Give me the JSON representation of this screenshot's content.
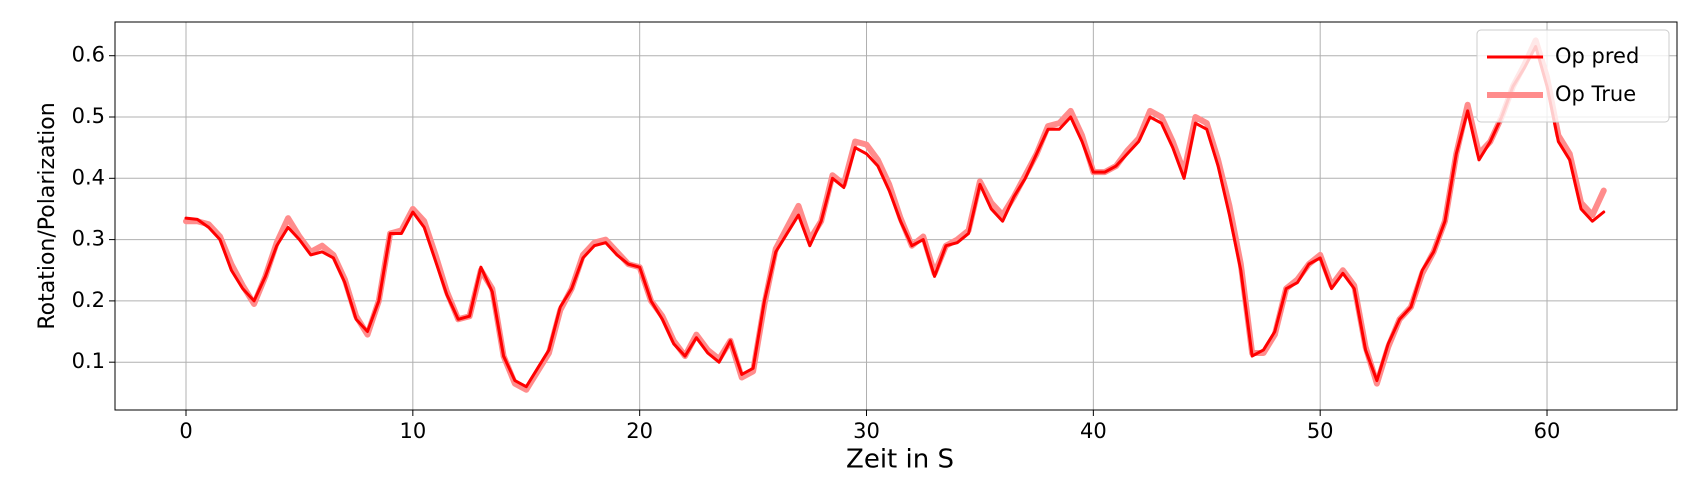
{
  "chart_data": {
    "type": "line",
    "xlabel": "Zeit in S",
    "ylabel": "Rotation/Polarization",
    "x": [
      0,
      0.5,
      1,
      1.5,
      2,
      2.5,
      3,
      3.5,
      4,
      4.5,
      5,
      5.5,
      6,
      6.5,
      7,
      7.5,
      8,
      8.5,
      9,
      9.5,
      10,
      10.5,
      11,
      11.5,
      12,
      12.5,
      13,
      13.5,
      14,
      14.5,
      15,
      15.5,
      16,
      16.5,
      17,
      17.5,
      18,
      18.5,
      19,
      19.5,
      20,
      20.5,
      21,
      21.5,
      22,
      22.5,
      23,
      23.5,
      24,
      24.5,
      25,
      25.5,
      26,
      26.5,
      27,
      27.5,
      28,
      28.5,
      29,
      29.5,
      30,
      30.5,
      31,
      31.5,
      32,
      32.5,
      33,
      33.5,
      34,
      34.5,
      35,
      35.5,
      36,
      36.5,
      37,
      37.5,
      38,
      38.5,
      39,
      39.5,
      40,
      40.5,
      41,
      41.5,
      42,
      42.5,
      43,
      43.5,
      44,
      44.5,
      45,
      45.5,
      46,
      46.5,
      47,
      47.5,
      48,
      48.5,
      49,
      49.5,
      50,
      50.5,
      51,
      51.5,
      52,
      52.5,
      53,
      53.5,
      54,
      54.5,
      55,
      55.5,
      56,
      56.5,
      57,
      57.5,
      58,
      58.5,
      59,
      59.5,
      60,
      60.5,
      61,
      61.5,
      62,
      62.5
    ],
    "series": [
      {
        "name": "Op True",
        "color": "#ff8c8c",
        "width": 6,
        "values": [
          0.33,
          0.33,
          0.325,
          0.305,
          0.26,
          0.225,
          0.195,
          0.24,
          0.295,
          0.335,
          0.305,
          0.28,
          0.29,
          0.275,
          0.235,
          0.175,
          0.145,
          0.2,
          0.31,
          0.315,
          0.35,
          0.33,
          0.275,
          0.215,
          0.17,
          0.175,
          0.25,
          0.22,
          0.11,
          0.065,
          0.055,
          0.085,
          0.115,
          0.185,
          0.22,
          0.275,
          0.295,
          0.3,
          0.28,
          0.26,
          0.255,
          0.2,
          0.175,
          0.135,
          0.11,
          0.145,
          0.12,
          0.105,
          0.135,
          0.075,
          0.085,
          0.195,
          0.285,
          0.32,
          0.355,
          0.3,
          0.33,
          0.405,
          0.39,
          0.46,
          0.455,
          0.43,
          0.39,
          0.335,
          0.29,
          0.305,
          0.245,
          0.29,
          0.3,
          0.315,
          0.395,
          0.36,
          0.34,
          0.37,
          0.405,
          0.44,
          0.485,
          0.49,
          0.51,
          0.47,
          0.41,
          0.41,
          0.42,
          0.445,
          0.465,
          0.51,
          0.5,
          0.46,
          0.41,
          0.5,
          0.49,
          0.43,
          0.355,
          0.26,
          0.115,
          0.115,
          0.145,
          0.22,
          0.235,
          0.26,
          0.275,
          0.225,
          0.25,
          0.225,
          0.125,
          0.065,
          0.125,
          0.17,
          0.19,
          0.245,
          0.28,
          0.33,
          0.44,
          0.52,
          0.44,
          0.46,
          0.5,
          0.55,
          0.585,
          0.625,
          0.565,
          0.47,
          0.44,
          0.36,
          0.34,
          0.38
        ]
      },
      {
        "name": "Op pred",
        "color": "#ff0000",
        "width": 3,
        "values": [
          0.335,
          0.333,
          0.32,
          0.3,
          0.25,
          0.22,
          0.2,
          0.24,
          0.29,
          0.32,
          0.3,
          0.275,
          0.28,
          0.27,
          0.23,
          0.17,
          0.15,
          0.2,
          0.31,
          0.31,
          0.345,
          0.32,
          0.265,
          0.21,
          0.17,
          0.175,
          0.255,
          0.215,
          0.11,
          0.07,
          0.06,
          0.09,
          0.12,
          0.19,
          0.22,
          0.27,
          0.29,
          0.295,
          0.275,
          0.26,
          0.255,
          0.2,
          0.17,
          0.13,
          0.11,
          0.14,
          0.115,
          0.1,
          0.135,
          0.08,
          0.09,
          0.2,
          0.28,
          0.31,
          0.34,
          0.29,
          0.33,
          0.4,
          0.385,
          0.45,
          0.44,
          0.42,
          0.38,
          0.33,
          0.29,
          0.3,
          0.24,
          0.29,
          0.295,
          0.31,
          0.39,
          0.35,
          0.33,
          0.37,
          0.4,
          0.44,
          0.48,
          0.48,
          0.5,
          0.46,
          0.41,
          0.41,
          0.42,
          0.44,
          0.46,
          0.5,
          0.49,
          0.45,
          0.4,
          0.49,
          0.48,
          0.42,
          0.34,
          0.25,
          0.11,
          0.12,
          0.15,
          0.22,
          0.23,
          0.26,
          0.27,
          0.22,
          0.245,
          0.22,
          0.12,
          0.07,
          0.13,
          0.17,
          0.19,
          0.25,
          0.28,
          0.33,
          0.44,
          0.51,
          0.43,
          0.46,
          0.5,
          0.55,
          0.58,
          0.615,
          0.55,
          0.46,
          0.43,
          0.35,
          0.33,
          0.345
        ]
      }
    ],
    "legend_order": [
      1,
      0
    ],
    "xlim": [
      -3.13,
      65.73
    ],
    "xticks": [
      0,
      10,
      20,
      30,
      40,
      50,
      60
    ],
    "ylim": [
      0.022,
      0.655
    ],
    "yticks": [
      0.1,
      0.2,
      0.3,
      0.4,
      0.5,
      0.6
    ],
    "grid": true,
    "legend": "upper right"
  }
}
